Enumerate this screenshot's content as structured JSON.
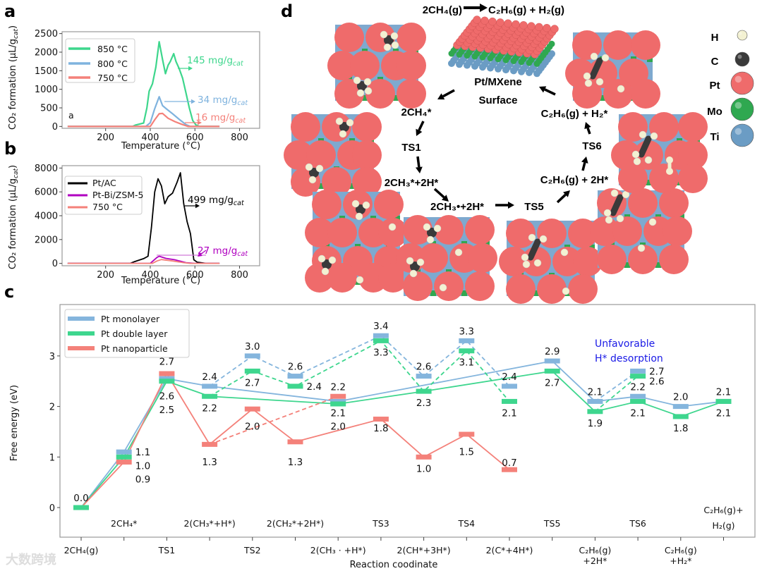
{
  "panel_labels": {
    "a": "a",
    "b": "b",
    "c": "c",
    "d": "d"
  },
  "watermark": "大数跨境",
  "chart_data": [
    {
      "id": "a",
      "type": "line",
      "xlabel": "Temperature (°C)",
      "ylabel": "CO₂ formation (μL/g",
      "ylabel_sub": "cat",
      "ylabel_end": ")",
      "xlim": [
        5,
        890
      ],
      "ylim": [
        -50,
        2550
      ],
      "xticks": [
        200,
        400,
        600,
        800
      ],
      "yticks": [
        0,
        500,
        1000,
        1500,
        2000,
        2500
      ],
      "inner_label": "a",
      "legend": "top-left",
      "series": [
        {
          "name": "850 °C",
          "color": "#3dd68c",
          "x": [
            30,
            320,
            335,
            370,
            385,
            395,
            410,
            425,
            440,
            455,
            468,
            480,
            490,
            505,
            515,
            530,
            545,
            560,
            575,
            590,
            605,
            620,
            710
          ],
          "y": [
            0,
            0,
            40,
            90,
            500,
            950,
            1150,
            1600,
            2280,
            1800,
            1420,
            1650,
            1750,
            1960,
            1750,
            1550,
            1300,
            900,
            500,
            160,
            40,
            5,
            0
          ]
        },
        {
          "name": "800 °C",
          "color": "#7fb3de",
          "x": [
            30,
            380,
            400,
            420,
            440,
            455,
            475,
            500,
            530,
            560,
            580,
            710
          ],
          "y": [
            0,
            0,
            100,
            480,
            800,
            560,
            460,
            340,
            190,
            50,
            0,
            0
          ]
        },
        {
          "name": "750 °C",
          "color": "#f4817a",
          "x": [
            30,
            400,
            420,
            440,
            455,
            480,
            510,
            540,
            570,
            710
          ],
          "y": [
            0,
            0,
            180,
            340,
            350,
            220,
            130,
            60,
            0,
            0
          ]
        }
      ],
      "annotations": [
        {
          "value": "145 mg/g",
          "sub": "cat",
          "color": "#3dd68c"
        },
        {
          "value": "34 mg/g",
          "sub": "cat",
          "color": "#7fb3de"
        },
        {
          "value": "16 mg/g",
          "sub": "cat",
          "color": "#f4817a"
        }
      ]
    },
    {
      "id": "b",
      "type": "line",
      "xlabel": "Temperature (°C)",
      "ylabel": "CO₂ formation (μL/g",
      "ylabel_sub": "cat",
      "ylabel_end": ")",
      "xlim": [
        5,
        890
      ],
      "ylim": [
        -200,
        8200
      ],
      "xticks": [
        200,
        400,
        600,
        800
      ],
      "yticks": [
        0,
        2000,
        4000,
        6000,
        8000
      ],
      "legend": "top-left",
      "series": [
        {
          "name": "Pt/AC",
          "color": "#000000",
          "x": [
            30,
            310,
            330,
            370,
            390,
            405,
            420,
            435,
            450,
            465,
            480,
            500,
            520,
            535,
            550,
            565,
            580,
            595,
            610,
            650,
            710
          ],
          "y": [
            0,
            0,
            150,
            400,
            600,
            3000,
            6000,
            7100,
            6500,
            5000,
            5600,
            5900,
            6800,
            7600,
            5000,
            3500,
            2500,
            300,
            100,
            0,
            0
          ]
        },
        {
          "name": "Pt-Bi/ZSM-5",
          "color": "#b000c0",
          "x": [
            30,
            400,
            430,
            440,
            470,
            510,
            560,
            600,
            710
          ],
          "y": [
            0,
            0,
            500,
            600,
            420,
            300,
            60,
            0,
            0
          ]
        },
        {
          "name": "750 °C",
          "color": "#f4817a",
          "x": [
            30,
            410,
            430,
            450,
            500,
            550,
            580,
            710
          ],
          "y": [
            0,
            0,
            200,
            320,
            200,
            60,
            0,
            0
          ]
        }
      ],
      "annotations": [
        {
          "value": "499 mg/g",
          "sub": "cat",
          "color": "#000000"
        },
        {
          "value": "27 mg/g",
          "sub": "cat",
          "color": "#b000c0"
        }
      ]
    },
    {
      "id": "c",
      "type": "line",
      "title": "",
      "xlabel": "Reaction coodinate",
      "ylabel": "Free energy (eV)",
      "ylim": [
        -0.55,
        4.0
      ],
      "yticks": [
        0,
        1,
        2,
        3
      ],
      "legend": "top-left",
      "categories": [
        {
          "label": [
            "2CH₄(g)"
          ],
          "row": "bottom"
        },
        {
          "label": [
            "2CH₄*"
          ],
          "row": "top"
        },
        {
          "label": [
            "TS1"
          ],
          "row": "bottom"
        },
        {
          "label": [
            "2(CH₃*+H*)"
          ],
          "row": "top"
        },
        {
          "label": [
            "TS2"
          ],
          "row": "bottom"
        },
        {
          "label": [
            "2(CH₂*+2H*)"
          ],
          "row": "top"
        },
        {
          "label": [
            "2(CH₃ · +H*)"
          ],
          "row": "bottom"
        },
        {
          "label": [
            "TS3"
          ],
          "row": "top"
        },
        {
          "label": [
            "2(CH*+3H*)"
          ],
          "row": "bottom"
        },
        {
          "label": [
            "TS4"
          ],
          "row": "top"
        },
        {
          "label": [
            "2(C*+4H*)"
          ],
          "row": "bottom"
        },
        {
          "label": [
            "TS5"
          ],
          "row": "top"
        },
        {
          "label": [
            "C₂H₆(g)",
            "+2H*"
          ],
          "row": "bottom"
        },
        {
          "label": [
            "TS6"
          ],
          "row": "top"
        },
        {
          "label": [
            "C₂H₆(g)",
            "+H₂*"
          ],
          "row": "bottom"
        },
        {
          "label": [
            "C₂H₆(g)+",
            "H₂(g)"
          ],
          "row": "top"
        }
      ],
      "series": [
        {
          "name": "Pt monolayer",
          "color": "#84b5dd",
          "values": [
            0.0,
            1.1,
            2.55,
            2.4,
            3.0,
            2.6,
            2.1,
            3.4,
            2.6,
            3.3,
            2.4,
            2.9,
            2.1,
            2.2,
            2.0,
            2.1
          ],
          "solid_path": [
            0,
            1,
            2,
            3,
            6,
            11,
            12,
            13,
            14,
            15
          ],
          "dashed_paths": [
            [
              3,
              4,
              5,
              7,
              8,
              9,
              10
            ]
          ],
          "alternate_points": [
            {
              "cat": 13,
              "value": 2.7,
              "from": 12
            }
          ]
        },
        {
          "name": "Pt double layer",
          "color": "#3ed68e",
          "values": [
            0.0,
            1.0,
            2.5,
            2.2,
            2.7,
            2.4,
            2.05,
            3.3,
            2.3,
            3.1,
            2.1,
            2.7,
            1.9,
            2.1,
            1.8,
            2.1
          ],
          "solid_path": [
            0,
            1,
            2,
            3,
            6,
            8,
            11,
            12,
            13,
            14,
            15
          ],
          "dashed_paths": [
            [
              3,
              4,
              5,
              7,
              8,
              9,
              10
            ]
          ],
          "alternate_points": [
            {
              "cat": 13,
              "value": 2.6,
              "from": 12
            }
          ]
        },
        {
          "name": "Pt nanoparticle",
          "color": "#f4817a",
          "values": [
            0.0,
            0.9,
            2.65,
            1.25,
            1.95,
            1.3,
            2.2,
            1.75,
            1.0,
            1.45,
            0.75,
            null,
            null,
            null,
            null,
            null
          ],
          "solid_path": [
            0,
            1,
            2,
            3,
            4,
            5,
            7,
            8,
            9,
            10
          ],
          "dashed_paths": [
            [
              3,
              6
            ]
          ],
          "alternate_points": []
        }
      ],
      "data_labels": [
        {
          "cat": 0,
          "text": "0.0",
          "pos": "above",
          "k": 0
        },
        {
          "cat": 1,
          "text": "1.1",
          "pos": "right",
          "k": 0
        },
        {
          "cat": 1,
          "text": "1.0",
          "pos": "right",
          "k": 1
        },
        {
          "cat": 1,
          "text": "0.9",
          "pos": "right",
          "k": 2
        },
        {
          "cat": 2,
          "text": "2.7",
          "pos": "above",
          "k": 0
        },
        {
          "cat": 2,
          "text": "2.6",
          "pos": "below",
          "k": 1
        },
        {
          "cat": 2,
          "text": "2.5",
          "pos": "below",
          "k": 2
        },
        {
          "cat": 3,
          "text": "2.4",
          "pos": "above",
          "k": 0
        },
        {
          "cat": 3,
          "text": "2.2",
          "pos": "below",
          "k": 0
        },
        {
          "cat": 3,
          "text": "1.3",
          "pos": "below",
          "k": 1
        },
        {
          "cat": 4,
          "text": "3.0",
          "pos": "above",
          "k": 0
        },
        {
          "cat": 4,
          "text": "2.7",
          "pos": "below",
          "k": 0
        },
        {
          "cat": 4,
          "text": "2.0",
          "pos": "below",
          "k": 1
        },
        {
          "cat": 5,
          "text": "2.6",
          "pos": "above",
          "k": 0
        },
        {
          "cat": 5,
          "text": "2.4",
          "pos": "right",
          "k": 0
        },
        {
          "cat": 5,
          "text": "1.3",
          "pos": "below",
          "k": 1
        },
        {
          "cat": 6,
          "text": "2.2",
          "pos": "above",
          "k": 0
        },
        {
          "cat": 6,
          "text": "2.1",
          "pos": "below",
          "k": 0
        },
        {
          "cat": 6,
          "text": "2.0",
          "pos": "below",
          "k": 1
        },
        {
          "cat": 7,
          "text": "3.4",
          "pos": "above",
          "k": 0
        },
        {
          "cat": 7,
          "text": "3.3",
          "pos": "below",
          "k": 0
        },
        {
          "cat": 7,
          "text": "1.8",
          "pos": "below",
          "k": 0
        },
        {
          "cat": 8,
          "text": "2.6",
          "pos": "above",
          "k": 0
        },
        {
          "cat": 8,
          "text": "2.3",
          "pos": "below",
          "k": 0
        },
        {
          "cat": 8,
          "text": "1.0",
          "pos": "below",
          "k": 0
        },
        {
          "cat": 9,
          "text": "3.3",
          "pos": "above",
          "k": 0
        },
        {
          "cat": 9,
          "text": "3.1",
          "pos": "below",
          "k": 0
        },
        {
          "cat": 9,
          "text": "1.5",
          "pos": "below",
          "k": 1
        },
        {
          "cat": 10,
          "text": "2.4",
          "pos": "above",
          "k": 0
        },
        {
          "cat": 10,
          "text": "2.1",
          "pos": "below",
          "k": 0
        },
        {
          "cat": 10,
          "text": "0.7",
          "pos": "above",
          "k": 0
        },
        {
          "cat": 11,
          "text": "2.9",
          "pos": "above",
          "k": 0
        },
        {
          "cat": 11,
          "text": "2.7",
          "pos": "below",
          "k": 0
        },
        {
          "cat": 12,
          "text": "2.1",
          "pos": "above",
          "k": 0
        },
        {
          "cat": 12,
          "text": "1.9",
          "pos": "below",
          "k": 0
        },
        {
          "cat": 13,
          "text": "2.2",
          "pos": "above",
          "k": 0
        },
        {
          "cat": 13,
          "text": "2.1",
          "pos": "below",
          "k": 0
        },
        {
          "cat": 13,
          "text": "2.7",
          "pos": "right",
          "k": 0,
          "color": "#1a1ae6"
        },
        {
          "cat": 13,
          "text": "2.6",
          "pos": "right",
          "k": 0,
          "color": "#1a1ae6"
        },
        {
          "cat": 14,
          "text": "2.0",
          "pos": "above",
          "k": 0
        },
        {
          "cat": 14,
          "text": "1.8",
          "pos": "below",
          "k": 0
        },
        {
          "cat": 15,
          "text": "2.1",
          "pos": "above",
          "k": 0
        },
        {
          "cat": 15,
          "text": "2.1",
          "pos": "below",
          "k": 0
        }
      ],
      "annotation": {
        "lines": [
          "Unfavorable",
          "H* desorption"
        ],
        "color": "#1a1ae6"
      }
    }
  ],
  "scheme": {
    "title_left": "2CH₄(g)",
    "title_right": "C₂H₆(g) + H₂(g)",
    "center_label": [
      "Pt/MXene",
      "Surface"
    ],
    "steps": {
      "ch4_ads": "2CH₄*",
      "ts1": "TS1",
      "ch3_h": "2CH₃*+2H*",
      "ch3_rad": "2CH₃•+2H*",
      "ts5": "TS5",
      "c2h6_2h": "C₂H₆(g) + 2H*",
      "ts6": "TS6",
      "c2h6_h2": "C₂H₆(g) + H₂*"
    },
    "legend": [
      {
        "label": "H",
        "color": "#f3f1d2"
      },
      {
        "label": "C",
        "color": "#3a3a3a"
      },
      {
        "label": "Pt",
        "color": "#ef6b6b"
      },
      {
        "label": "Mo",
        "color": "#2fa850"
      },
      {
        "label": "Ti",
        "color": "#6b9cc4"
      }
    ]
  }
}
